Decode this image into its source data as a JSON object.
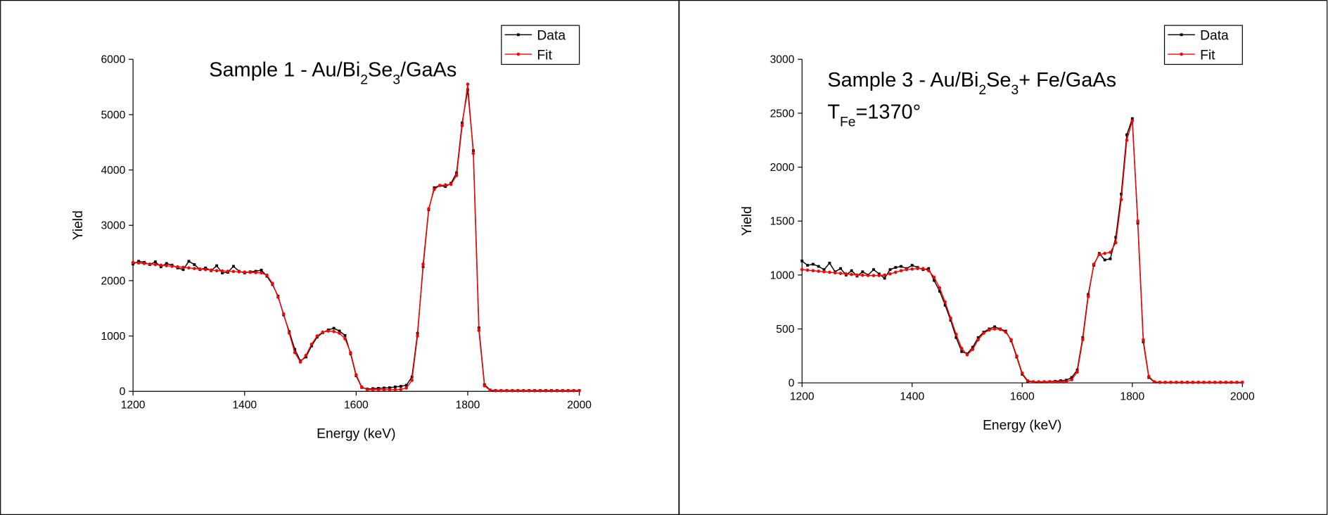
{
  "chart_data": [
    {
      "type": "line",
      "title": [
        {
          "text": "Sample 1 - Au/Bi"
        },
        {
          "text": "2",
          "sub": true
        },
        {
          "text": "Se"
        },
        {
          "text": "3",
          "sub": true
        },
        {
          "text": "/GaAs"
        }
      ],
      "xlabel": "Energy (keV)",
      "ylabel": "Yield",
      "xlim": [
        1200,
        2000
      ],
      "xticks": [
        1200,
        1400,
        1600,
        1800,
        2000
      ],
      "ylim": [
        0,
        6000
      ],
      "yticks": [
        0,
        1000,
        2000,
        3000,
        4000,
        5000,
        6000
      ],
      "legend": "upper right",
      "x": [
        1200,
        1210,
        1220,
        1230,
        1240,
        1250,
        1260,
        1270,
        1280,
        1290,
        1300,
        1310,
        1320,
        1330,
        1340,
        1350,
        1360,
        1370,
        1380,
        1390,
        1400,
        1410,
        1420,
        1430,
        1440,
        1450,
        1460,
        1470,
        1480,
        1490,
        1500,
        1510,
        1520,
        1530,
        1540,
        1550,
        1560,
        1570,
        1580,
        1590,
        1600,
        1610,
        1620,
        1630,
        1640,
        1650,
        1660,
        1670,
        1680,
        1690,
        1700,
        1710,
        1720,
        1730,
        1740,
        1750,
        1760,
        1770,
        1780,
        1790,
        1800,
        1810,
        1820,
        1830,
        1840,
        1850,
        1860,
        1870,
        1880,
        1890,
        1900,
        1910,
        1920,
        1930,
        1940,
        1950,
        1960,
        1970,
        1980,
        1990,
        2000
      ],
      "series": [
        {
          "name": "Data",
          "color": "#000000",
          "marker": "square",
          "values": [
            2300,
            2350,
            2330,
            2290,
            2340,
            2250,
            2310,
            2280,
            2230,
            2200,
            2350,
            2290,
            2200,
            2230,
            2180,
            2270,
            2140,
            2150,
            2260,
            2170,
            2140,
            2160,
            2170,
            2190,
            2080,
            1930,
            1720,
            1380,
            1080,
            760,
            550,
            620,
            820,
            980,
            1060,
            1110,
            1140,
            1090,
            1010,
            680,
            280,
            70,
            40,
            50,
            55,
            60,
            65,
            80,
            90,
            110,
            260,
            1050,
            2250,
            3280,
            3680,
            3720,
            3700,
            3760,
            3950,
            4850,
            5450,
            4350,
            1150,
            120,
            25,
            15,
            15,
            15,
            15,
            15,
            15,
            15,
            15,
            15,
            15,
            15,
            15,
            15,
            15,
            15,
            15
          ]
        },
        {
          "name": "Fit",
          "color": "#ff0000",
          "marker": "circle",
          "values": [
            2330,
            2320,
            2310,
            2300,
            2290,
            2280,
            2270,
            2260,
            2250,
            2240,
            2230,
            2220,
            2210,
            2200,
            2190,
            2180,
            2175,
            2170,
            2165,
            2160,
            2155,
            2150,
            2145,
            2140,
            2100,
            1950,
            1700,
            1400,
            1050,
            700,
            530,
            650,
            850,
            1000,
            1070,
            1090,
            1080,
            1050,
            950,
            700,
            300,
            80,
            30,
            30,
            30,
            30,
            30,
            30,
            35,
            60,
            200,
            1000,
            2300,
            3300,
            3650,
            3720,
            3730,
            3740,
            3900,
            4800,
            5550,
            4300,
            1100,
            100,
            20,
            10,
            10,
            10,
            10,
            10,
            10,
            10,
            10,
            10,
            10,
            10,
            10,
            10,
            10,
            10,
            10
          ]
        }
      ]
    },
    {
      "type": "line",
      "title": [
        {
          "text": "Sample 3 - Au/Bi"
        },
        {
          "text": "2",
          "sub": true
        },
        {
          "text": "Se"
        },
        {
          "text": "3",
          "sub": true
        },
        {
          "text": "+ Fe/GaAs"
        }
      ],
      "annotation": [
        {
          "text": "T"
        },
        {
          "text": "Fe",
          "sub": true
        },
        {
          "text": "=1370°"
        }
      ],
      "xlabel": "Energy (keV)",
      "ylabel": "Yield",
      "xlim": [
        1200,
        2000
      ],
      "xticks": [
        1200,
        1400,
        1600,
        1800,
        2000
      ],
      "ylim": [
        0,
        3000
      ],
      "yticks": [
        0,
        500,
        1000,
        1500,
        2000,
        2500,
        3000
      ],
      "legend": "upper right",
      "x": [
        1200,
        1210,
        1220,
        1230,
        1240,
        1250,
        1260,
        1270,
        1280,
        1290,
        1300,
        1310,
        1320,
        1330,
        1340,
        1350,
        1360,
        1370,
        1380,
        1390,
        1400,
        1410,
        1420,
        1430,
        1440,
        1450,
        1460,
        1470,
        1480,
        1490,
        1500,
        1510,
        1520,
        1530,
        1540,
        1550,
        1560,
        1570,
        1580,
        1590,
        1600,
        1610,
        1620,
        1630,
        1640,
        1650,
        1660,
        1670,
        1680,
        1690,
        1700,
        1710,
        1720,
        1730,
        1740,
        1750,
        1760,
        1770,
        1780,
        1790,
        1800,
        1810,
        1820,
        1830,
        1840,
        1850,
        1860,
        1870,
        1880,
        1890,
        1900,
        1910,
        1920,
        1930,
        1940,
        1950,
        1960,
        1970,
        1980,
        1990,
        2000
      ],
      "series": [
        {
          "name": "Data",
          "color": "#000000",
          "marker": "square",
          "values": [
            1130,
            1090,
            1100,
            1080,
            1050,
            1110,
            1030,
            1060,
            1000,
            1040,
            990,
            1030,
            1000,
            1050,
            1010,
            970,
            1050,
            1070,
            1080,
            1060,
            1090,
            1070,
            1050,
            1060,
            950,
            850,
            720,
            580,
            420,
            290,
            270,
            330,
            420,
            470,
            500,
            520,
            500,
            480,
            390,
            240,
            80,
            15,
            10,
            8,
            10,
            12,
            15,
            20,
            25,
            50,
            120,
            420,
            820,
            1090,
            1200,
            1140,
            1150,
            1350,
            1750,
            2300,
            2450,
            1480,
            380,
            50,
            8,
            5,
            5,
            5,
            5,
            5,
            5,
            5,
            5,
            5,
            5,
            5,
            5,
            5,
            5,
            5,
            5
          ]
        },
        {
          "name": "Fit",
          "color": "#ff0000",
          "marker": "circle",
          "values": [
            1050,
            1045,
            1040,
            1035,
            1030,
            1025,
            1020,
            1015,
            1010,
            1005,
            1000,
            998,
            995,
            995,
            995,
            1000,
            1010,
            1025,
            1040,
            1050,
            1055,
            1060,
            1060,
            1040,
            980,
            880,
            750,
            600,
            450,
            320,
            260,
            310,
            400,
            460,
            490,
            500,
            495,
            470,
            400,
            250,
            90,
            20,
            10,
            10,
            10,
            10,
            10,
            10,
            10,
            30,
            100,
            400,
            800,
            1100,
            1190,
            1200,
            1210,
            1300,
            1700,
            2250,
            2430,
            1500,
            400,
            60,
            10,
            5,
            5,
            5,
            5,
            5,
            5,
            5,
            5,
            5,
            5,
            5,
            5,
            5,
            5,
            5,
            5
          ]
        }
      ]
    }
  ]
}
